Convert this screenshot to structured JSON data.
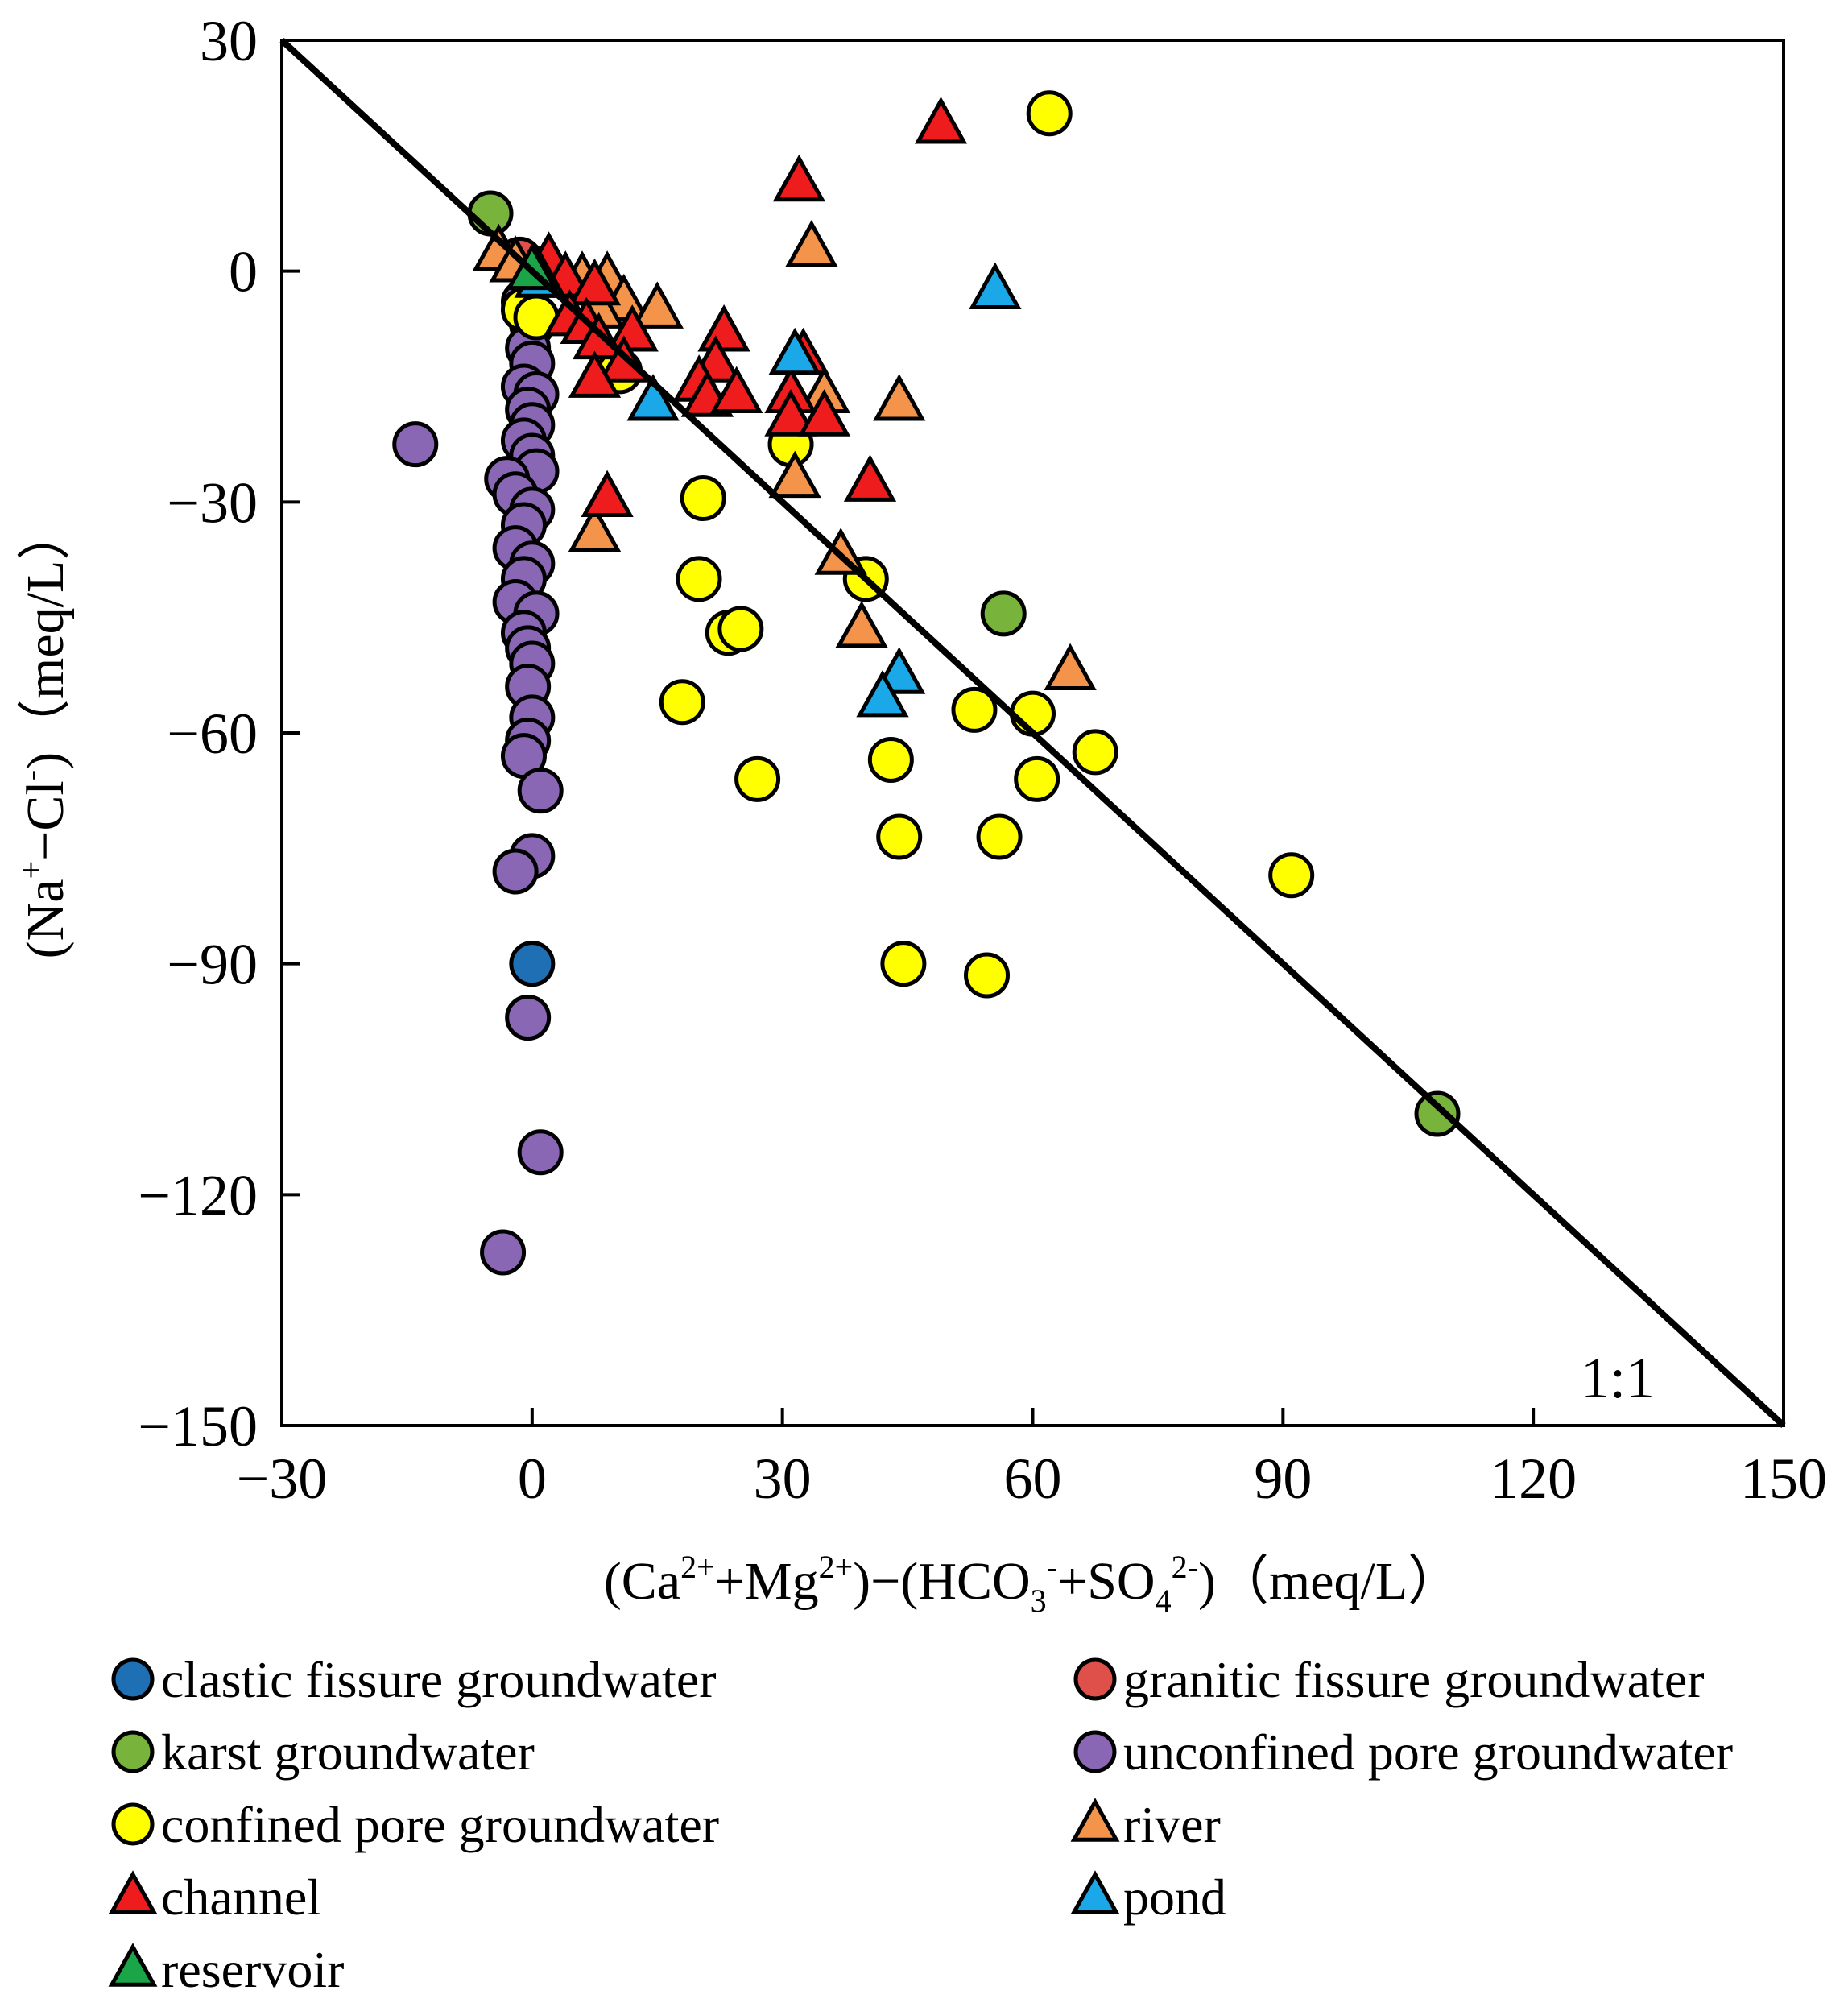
{
  "chart_data": {
    "type": "scatter",
    "title": "",
    "xlabel": "(Ca2+ + Mg2+) − (HCO3- + SO42-) (meq/L)",
    "ylabel": "(Na+ − Cl-) (meq/L)",
    "xlim": [
      -30,
      150
    ],
    "ylim": [
      -150,
      30
    ],
    "xticks": [
      -30,
      0,
      30,
      60,
      90,
      120,
      150
    ],
    "yticks": [
      30,
      0,
      -30,
      -60,
      -90,
      -120,
      -150
    ],
    "xtick_labels": [
      "−30",
      "0",
      "30",
      "60",
      "90",
      "120",
      "150"
    ],
    "ytick_labels": [
      "30",
      "0",
      "−30",
      "−60",
      "−90",
      "−120",
      "−150"
    ],
    "xlabel_parts": {
      "a": "(Ca",
      "b": "2+",
      "c": "+Mg",
      "d": "2+",
      "e": ")−(HCO",
      "f": "3",
      "g": "-",
      "h": "+SO",
      "i": "4",
      "j": "2-",
      "k": ")（meq/L）"
    },
    "ylabel_parts": {
      "a": "(Na",
      "b": "+",
      "c": "−Cl",
      "d": "-",
      "e": ")（meq/L）"
    },
    "reference_line": {
      "label": "1:1",
      "from": [
        -30,
        30
      ],
      "to": [
        150,
        -150
      ]
    },
    "series": [
      {
        "name": "clastic fissure groundwater",
        "marker": "circle",
        "color": "#1f6fb4",
        "points": [
          [
            0,
            -90
          ],
          [
            -1,
            1
          ]
        ]
      },
      {
        "name": "granitic fissure groundwater",
        "marker": "circle",
        "color": "#e0504a",
        "points": [
          [
            -1.5,
            1.5
          ]
        ]
      },
      {
        "name": "karst groundwater",
        "marker": "circle",
        "color": "#78b43c",
        "points": [
          [
            -5,
            7.5
          ],
          [
            56.5,
            -44.5
          ],
          [
            108.5,
            -109.5
          ]
        ]
      },
      {
        "name": "unconfined pore groundwater",
        "marker": "circle",
        "color": "#8a67b5",
        "points": [
          [
            -14,
            -22.5
          ],
          [
            -1,
            -4
          ],
          [
            0,
            -7
          ],
          [
            -0.5,
            -10
          ],
          [
            0,
            -12
          ],
          [
            -1,
            -15
          ],
          [
            0.5,
            -16
          ],
          [
            -0.5,
            -18
          ],
          [
            0,
            -20
          ],
          [
            -1,
            -22
          ],
          [
            0,
            -24
          ],
          [
            0.5,
            -26
          ],
          [
            -3,
            -27
          ],
          [
            -2,
            -29
          ],
          [
            0,
            -31
          ],
          [
            -1,
            -33
          ],
          [
            -2,
            -36
          ],
          [
            0,
            -38
          ],
          [
            -1,
            -40
          ],
          [
            -2,
            -43
          ],
          [
            0.5,
            -44.5
          ],
          [
            -1,
            -47
          ],
          [
            -0.5,
            -49
          ],
          [
            0,
            -51
          ],
          [
            -0.5,
            -54
          ],
          [
            0,
            -58
          ],
          [
            -0.5,
            -61
          ],
          [
            -1,
            -63
          ],
          [
            1,
            -67.5
          ],
          [
            0,
            -76
          ],
          [
            -2,
            -78
          ],
          [
            -0.5,
            -97
          ],
          [
            1,
            -114.5
          ],
          [
            -3.5,
            -127.5
          ]
        ]
      },
      {
        "name": "confined pore groundwater",
        "marker": "circle",
        "color": "#ffff00",
        "points": [
          [
            62,
            20.5
          ],
          [
            -1,
            -5
          ],
          [
            0.5,
            -6
          ],
          [
            10.5,
            -13
          ],
          [
            31,
            -22.5
          ],
          [
            20.5,
            -29.5
          ],
          [
            20,
            -40
          ],
          [
            40,
            -40
          ],
          [
            23.5,
            -47
          ],
          [
            25,
            -46.5
          ],
          [
            18,
            -56
          ],
          [
            53,
            -57
          ],
          [
            60,
            -57.5
          ],
          [
            27,
            -66
          ],
          [
            43,
            -63.5
          ],
          [
            60.5,
            -66
          ],
          [
            67.5,
            -62.5
          ],
          [
            44,
            -73.5
          ],
          [
            56,
            -73.5
          ],
          [
            91,
            -78.5
          ],
          [
            44.5,
            -90
          ],
          [
            54.5,
            -91.5
          ]
        ]
      },
      {
        "name": "river",
        "marker": "triangle",
        "color": "#f4934a",
        "points": [
          [
            -4,
            2.5
          ],
          [
            -2,
            1
          ],
          [
            3,
            -1
          ],
          [
            6,
            -1
          ],
          [
            9,
            -1
          ],
          [
            33.5,
            3
          ],
          [
            11,
            -4
          ],
          [
            15,
            -5
          ],
          [
            8,
            -5
          ],
          [
            23,
            -8
          ],
          [
            35,
            -16
          ],
          [
            44,
            -17
          ],
          [
            31.5,
            -27
          ],
          [
            7.5,
            -34
          ],
          [
            37,
            -37
          ],
          [
            39.5,
            -46.5
          ],
          [
            64.5,
            -52
          ]
        ]
      },
      {
        "name": "channel",
        "marker": "triangle",
        "color": "#ee1c1c",
        "points": [
          [
            49,
            19
          ],
          [
            32,
            11.5
          ],
          [
            2,
            1.5
          ],
          [
            4,
            -1
          ],
          [
            7.5,
            -2
          ],
          [
            4.5,
            -6
          ],
          [
            6.5,
            -7
          ],
          [
            12,
            -8
          ],
          [
            8,
            -9
          ],
          [
            11,
            -12
          ],
          [
            23,
            -8
          ],
          [
            22,
            -12
          ],
          [
            20,
            -14.5
          ],
          [
            7.5,
            -14
          ],
          [
            21,
            -16.5
          ],
          [
            24.5,
            -16
          ],
          [
            31,
            -16
          ],
          [
            31,
            -19
          ],
          [
            35,
            -19
          ],
          [
            32.5,
            -11
          ],
          [
            40.5,
            -27.5
          ],
          [
            9,
            -29.5
          ]
        ]
      },
      {
        "name": "pond",
        "marker": "triangle",
        "color": "#1aa8e8",
        "points": [
          [
            55.5,
            -2.5
          ],
          [
            1,
            -1
          ],
          [
            31.5,
            -11
          ],
          [
            14.5,
            -17
          ],
          [
            44,
            -52.5
          ],
          [
            42,
            -55.5
          ]
        ]
      },
      {
        "name": "reservoir",
        "marker": "triangle",
        "color": "#1aa548",
        "points": [
          [
            0,
            0
          ]
        ]
      }
    ],
    "legend": [
      {
        "label": "clastic fissure groundwater",
        "marker": "circle",
        "color": "#1f6fb4"
      },
      {
        "label": "granitic fissure groundwater",
        "marker": "circle",
        "color": "#e0504a"
      },
      {
        "label": "karst groundwater",
        "marker": "circle",
        "color": "#78b43c"
      },
      {
        "label": "unconfined pore groundwater",
        "marker": "circle",
        "color": "#8a67b5"
      },
      {
        "label": "confined pore groundwater",
        "marker": "circle",
        "color": "#ffff00"
      },
      {
        "label": "river",
        "marker": "triangle",
        "color": "#f4934a"
      },
      {
        "label": "channel",
        "marker": "triangle",
        "color": "#ee1c1c"
      },
      {
        "label": "pond",
        "marker": "triangle",
        "color": "#1aa8e8"
      },
      {
        "label": "reservoir",
        "marker": "triangle",
        "color": "#1aa548"
      }
    ],
    "legend_position": "bottom"
  }
}
